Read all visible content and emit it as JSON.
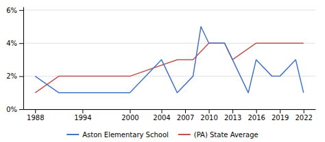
{
  "chart_data": {
    "type": "line",
    "series": [
      {
        "name": "Aston Elementary School",
        "color": "#4472C4",
        "x": [
          1988,
          1991,
          1994,
          2000,
          2004,
          2006,
          2008,
          2009,
          2010,
          2012,
          2013,
          2015,
          2016,
          2018,
          2019,
          2021,
          2022
        ],
        "values": [
          2.0,
          1.0,
          1.0,
          1.0,
          3.0,
          1.0,
          2.0,
          5.0,
          4.0,
          4.0,
          3.0,
          1.0,
          3.0,
          2.0,
          2.0,
          3.0,
          1.0
        ]
      },
      {
        "name": "(PA) State Average",
        "color": "#C0504D",
        "x": [
          1988,
          1991,
          1994,
          2000,
          2006,
          2008,
          2010,
          2012,
          2013,
          2016,
          2022
        ],
        "values": [
          1.0,
          2.0,
          2.0,
          2.0,
          3.0,
          3.0,
          4.0,
          4.0,
          3.0,
          4.0,
          4.0
        ]
      }
    ],
    "xlim": [
      1986.5,
      2023.5
    ],
    "xticks": [
      1988,
      1994,
      2000,
      2004,
      2007,
      2010,
      2013,
      2016,
      2019,
      2022
    ],
    "ylim": [
      0,
      6.2
    ],
    "yticks": [
      {
        "value": 0,
        "label": "0%"
      },
      {
        "value": 2,
        "label": "2%"
      },
      {
        "value": 4,
        "label": "4%"
      },
      {
        "value": 6,
        "label": "6%"
      }
    ],
    "grid": "y",
    "legend": "bottom"
  }
}
